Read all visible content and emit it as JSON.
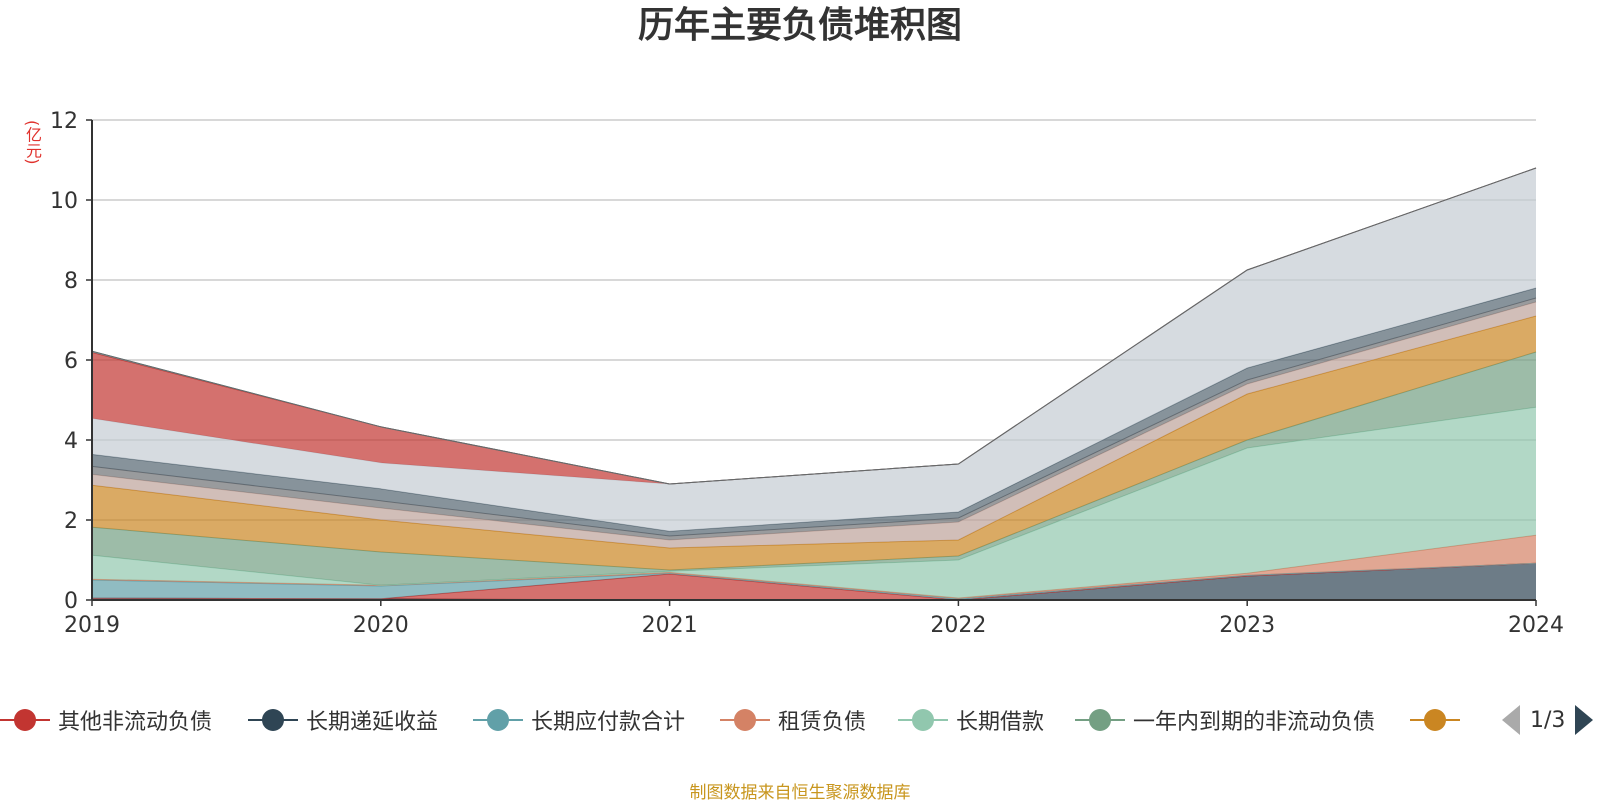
{
  "source_note": "制图数据来自恒生聚源数据库",
  "pager": {
    "text": "1/3"
  },
  "legend": [
    {
      "label": "其他非流动负债",
      "color": "#c23531"
    },
    {
      "label": "长期递延收益",
      "color": "#2f4554"
    },
    {
      "label": "长期应付款合计",
      "color": "#61a0a8"
    },
    {
      "label": "租赁负债",
      "color": "#d48265"
    },
    {
      "label": "长期借款",
      "color": "#91c7ae"
    },
    {
      "label": "一年内到期的非流动负债",
      "color": "#749f83"
    },
    {
      "label": "",
      "color": "#ca8622"
    }
  ],
  "chart_data": {
    "type": "area",
    "stacked": true,
    "title": "历年主要负债堆积图",
    "ylabel": "(亿元)",
    "categories": [
      "2019",
      "2020",
      "2021",
      "2022",
      "2023",
      "2024"
    ],
    "ylim": [
      0,
      12
    ],
    "yticks": [
      0,
      2,
      4,
      6,
      8,
      10,
      12
    ],
    "grid": true,
    "legend_position": "bottom",
    "series": [
      {
        "name": "长期递延收益",
        "color": "#2f4554",
        "values": [
          0.05,
          0.03,
          0.0,
          0.0,
          0.6,
          0.92
        ]
      },
      {
        "name": "其他非流动负债",
        "color": "#c23531",
        "values": [
          0.0,
          0.0,
          0.65,
          0.0,
          0.0,
          0.0
        ]
      },
      {
        "name": "长期应付款合计",
        "color": "#61a0a8",
        "values": [
          0.45,
          0.32,
          0.02,
          0.03,
          0.02,
          0.0
        ]
      },
      {
        "name": "租赁负债",
        "color": "#d48265",
        "values": [
          0.02,
          0.02,
          0.02,
          0.02,
          0.05,
          0.7
        ]
      },
      {
        "name": "长期借款",
        "color": "#91c7ae",
        "values": [
          0.6,
          0.0,
          0.03,
          0.95,
          3.13,
          3.2
        ]
      },
      {
        "name": "一年内到期的非流动负债",
        "color": "#749f83",
        "values": [
          0.7,
          0.83,
          0.03,
          0.1,
          0.2,
          1.38
        ]
      },
      {
        "name": "",
        "color": "#ca8622",
        "values": [
          1.05,
          0.8,
          0.55,
          0.4,
          1.15,
          0.9
        ]
      },
      {
        "name": "",
        "color": "#bda29a",
        "values": [
          0.27,
          0.3,
          0.2,
          0.45,
          0.25,
          0.35
        ]
      },
      {
        "name": "",
        "color": "#6e7074",
        "values": [
          0.2,
          0.18,
          0.1,
          0.1,
          0.1,
          0.1
        ]
      },
      {
        "name": "",
        "color": "#546570",
        "values": [
          0.3,
          0.3,
          0.12,
          0.15,
          0.3,
          0.25
        ]
      },
      {
        "name": "",
        "color": "#c4ccd3",
        "values": [
          0.9,
          0.65,
          1.18,
          1.2,
          2.45,
          3.0
        ]
      },
      {
        "name": "其他非流动负债",
        "color": "#c23531",
        "values": [
          1.65,
          0.9,
          0.0,
          0.0,
          0.0,
          0.0
        ]
      },
      {
        "name": "",
        "color": "#61a0a8",
        "values": [
          0.03,
          0.0,
          0.0,
          0.0,
          0.0,
          0.0
        ]
      }
    ]
  }
}
